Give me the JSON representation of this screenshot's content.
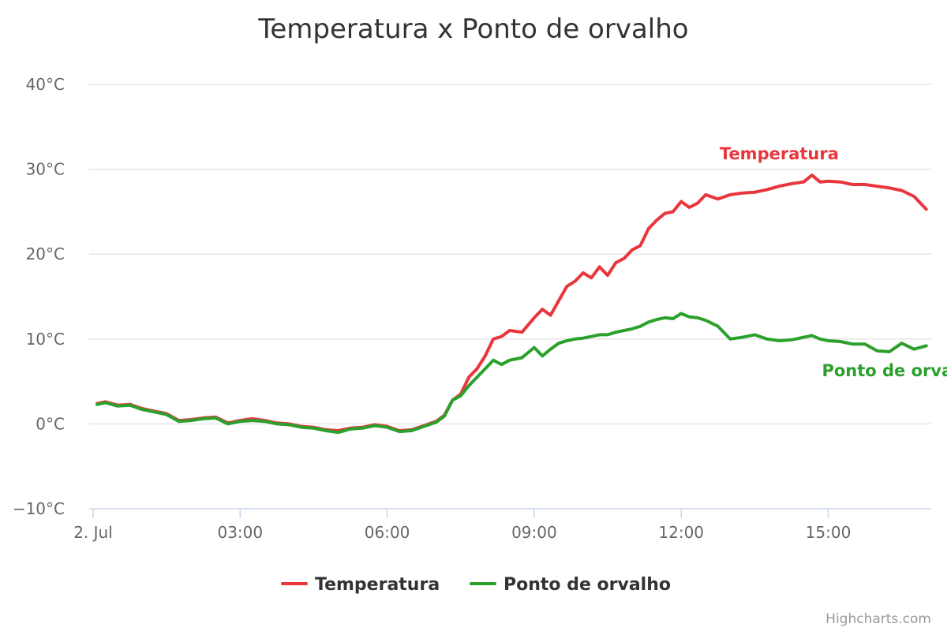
{
  "chart_data": {
    "type": "line",
    "title": "Temperatura x Ponto de orvalho",
    "xlabel": "",
    "ylabel": "",
    "ylim": [
      -10,
      40
    ],
    "y_ticks": [
      {
        "value": -10,
        "label": "−10°C"
      },
      {
        "value": 0,
        "label": "0°C"
      },
      {
        "value": 10,
        "label": "10°C"
      },
      {
        "value": 20,
        "label": "20°C"
      },
      {
        "value": 30,
        "label": "30°C"
      },
      {
        "value": 40,
        "label": "40°C"
      }
    ],
    "xlim": [
      "00:00",
      "17:05"
    ],
    "x_ticks": [
      {
        "value": "00:00",
        "label": "2. Jul"
      },
      {
        "value": "03:00",
        "label": "03:00"
      },
      {
        "value": "06:00",
        "label": "06:00"
      },
      {
        "value": "09:00",
        "label": "09:00"
      },
      {
        "value": "12:00",
        "label": "12:00"
      },
      {
        "value": "15:00",
        "label": "15:00"
      }
    ],
    "grid": true,
    "legend_position": "bottom-center",
    "series": [
      {
        "name": "Temperatura",
        "color": "#e8363c",
        "label_at": "14:00",
        "points": [
          [
            "00:05",
            2.4
          ],
          [
            "00:15",
            2.6
          ],
          [
            "00:30",
            2.2
          ],
          [
            "00:45",
            2.3
          ],
          [
            "01:00",
            1.8
          ],
          [
            "01:15",
            1.5
          ],
          [
            "01:30",
            1.2
          ],
          [
            "01:45",
            0.4
          ],
          [
            "02:00",
            0.5
          ],
          [
            "02:15",
            0.7
          ],
          [
            "02:30",
            0.8
          ],
          [
            "02:45",
            0.1
          ],
          [
            "03:00",
            0.4
          ],
          [
            "03:15",
            0.6
          ],
          [
            "03:30",
            0.4
          ],
          [
            "03:45",
            0.1
          ],
          [
            "04:00",
            0.0
          ],
          [
            "04:15",
            -0.3
          ],
          [
            "04:30",
            -0.4
          ],
          [
            "04:45",
            -0.7
          ],
          [
            "05:00",
            -0.8
          ],
          [
            "05:15",
            -0.5
          ],
          [
            "05:30",
            -0.4
          ],
          [
            "05:45",
            -0.1
          ],
          [
            "06:00",
            -0.3
          ],
          [
            "06:15",
            -0.8
          ],
          [
            "06:30",
            -0.7
          ],
          [
            "06:45",
            -0.2
          ],
          [
            "07:00",
            0.3
          ],
          [
            "07:10",
            1.0
          ],
          [
            "07:20",
            2.8
          ],
          [
            "07:30",
            3.5
          ],
          [
            "07:40",
            5.5
          ],
          [
            "07:50",
            6.5
          ],
          [
            "08:00",
            8.0
          ],
          [
            "08:10",
            10.0
          ],
          [
            "08:20",
            10.3
          ],
          [
            "08:30",
            11.0
          ],
          [
            "08:45",
            10.8
          ],
          [
            "09:00",
            12.5
          ],
          [
            "09:10",
            13.5
          ],
          [
            "09:20",
            12.8
          ],
          [
            "09:30",
            14.5
          ],
          [
            "09:40",
            16.2
          ],
          [
            "09:50",
            16.8
          ],
          [
            "10:00",
            17.8
          ],
          [
            "10:10",
            17.2
          ],
          [
            "10:20",
            18.5
          ],
          [
            "10:30",
            17.5
          ],
          [
            "10:40",
            19.0
          ],
          [
            "10:50",
            19.5
          ],
          [
            "11:00",
            20.5
          ],
          [
            "11:10",
            21.0
          ],
          [
            "11:20",
            23.0
          ],
          [
            "11:30",
            24.0
          ],
          [
            "11:40",
            24.8
          ],
          [
            "11:50",
            25.0
          ],
          [
            "12:00",
            26.2
          ],
          [
            "12:10",
            25.5
          ],
          [
            "12:20",
            26.0
          ],
          [
            "12:30",
            27.0
          ],
          [
            "12:45",
            26.5
          ],
          [
            "13:00",
            27.0
          ],
          [
            "13:15",
            27.2
          ],
          [
            "13:30",
            27.3
          ],
          [
            "13:45",
            27.6
          ],
          [
            "14:00",
            28.0
          ],
          [
            "14:15",
            28.3
          ],
          [
            "14:30",
            28.5
          ],
          [
            "14:40",
            29.3
          ],
          [
            "14:50",
            28.5
          ],
          [
            "15:00",
            28.6
          ],
          [
            "15:15",
            28.5
          ],
          [
            "15:30",
            28.2
          ],
          [
            "15:45",
            28.2
          ],
          [
            "16:00",
            28.0
          ],
          [
            "16:15",
            27.8
          ],
          [
            "16:30",
            27.5
          ],
          [
            "16:45",
            26.8
          ],
          [
            "17:00",
            25.3
          ]
        ]
      },
      {
        "name": "Ponto de orvalho",
        "color": "#2ca02c",
        "label_at": "16:30",
        "points": [
          [
            "00:05",
            2.3
          ],
          [
            "00:15",
            2.5
          ],
          [
            "00:30",
            2.1
          ],
          [
            "00:45",
            2.2
          ],
          [
            "01:00",
            1.7
          ],
          [
            "01:15",
            1.4
          ],
          [
            "01:30",
            1.1
          ],
          [
            "01:45",
            0.3
          ],
          [
            "02:00",
            0.4
          ],
          [
            "02:15",
            0.6
          ],
          [
            "02:30",
            0.7
          ],
          [
            "02:45",
            0.0
          ],
          [
            "03:00",
            0.3
          ],
          [
            "03:15",
            0.4
          ],
          [
            "03:30",
            0.3
          ],
          [
            "03:45",
            0.0
          ],
          [
            "04:00",
            -0.1
          ],
          [
            "04:15",
            -0.4
          ],
          [
            "04:30",
            -0.5
          ],
          [
            "04:45",
            -0.8
          ],
          [
            "05:00",
            -1.0
          ],
          [
            "05:15",
            -0.6
          ],
          [
            "05:30",
            -0.5
          ],
          [
            "05:45",
            -0.2
          ],
          [
            "06:00",
            -0.4
          ],
          [
            "06:15",
            -0.9
          ],
          [
            "06:30",
            -0.8
          ],
          [
            "06:45",
            -0.3
          ],
          [
            "07:00",
            0.2
          ],
          [
            "07:10",
            0.9
          ],
          [
            "07:20",
            2.8
          ],
          [
            "07:30",
            3.3
          ],
          [
            "07:40",
            4.5
          ],
          [
            "07:50",
            5.5
          ],
          [
            "08:00",
            6.5
          ],
          [
            "08:10",
            7.5
          ],
          [
            "08:20",
            7.0
          ],
          [
            "08:30",
            7.5
          ],
          [
            "08:45",
            7.8
          ],
          [
            "09:00",
            9.0
          ],
          [
            "09:10",
            8.0
          ],
          [
            "09:20",
            8.8
          ],
          [
            "09:30",
            9.5
          ],
          [
            "09:40",
            9.8
          ],
          [
            "09:50",
            10.0
          ],
          [
            "10:00",
            10.1
          ],
          [
            "10:10",
            10.3
          ],
          [
            "10:20",
            10.5
          ],
          [
            "10:30",
            10.5
          ],
          [
            "10:40",
            10.8
          ],
          [
            "10:50",
            11.0
          ],
          [
            "11:00",
            11.2
          ],
          [
            "11:10",
            11.5
          ],
          [
            "11:20",
            12.0
          ],
          [
            "11:30",
            12.3
          ],
          [
            "11:40",
            12.5
          ],
          [
            "11:50",
            12.4
          ],
          [
            "12:00",
            13.0
          ],
          [
            "12:10",
            12.6
          ],
          [
            "12:20",
            12.5
          ],
          [
            "12:30",
            12.2
          ],
          [
            "12:45",
            11.5
          ],
          [
            "13:00",
            10.0
          ],
          [
            "13:15",
            10.2
          ],
          [
            "13:30",
            10.5
          ],
          [
            "13:45",
            10.0
          ],
          [
            "14:00",
            9.8
          ],
          [
            "14:15",
            9.9
          ],
          [
            "14:30",
            10.2
          ],
          [
            "14:40",
            10.4
          ],
          [
            "14:50",
            10.0
          ],
          [
            "15:00",
            9.8
          ],
          [
            "15:15",
            9.7
          ],
          [
            "15:30",
            9.4
          ],
          [
            "15:45",
            9.4
          ],
          [
            "16:00",
            8.6
          ],
          [
            "16:15",
            8.5
          ],
          [
            "16:30",
            9.5
          ],
          [
            "16:45",
            8.8
          ],
          [
            "17:00",
            9.2
          ]
        ]
      }
    ],
    "credits": "Highcharts.com"
  }
}
